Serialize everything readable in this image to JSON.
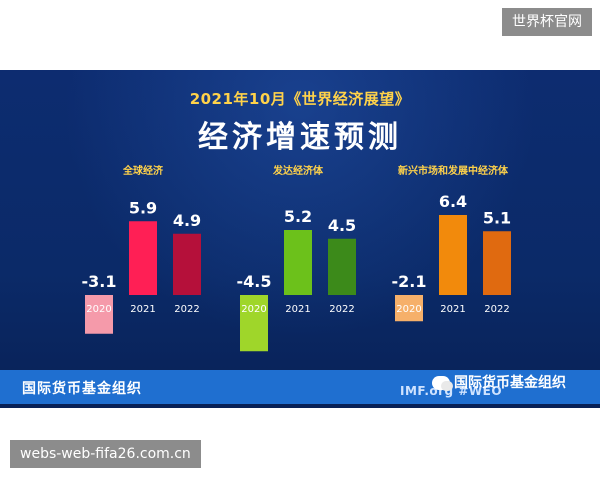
{
  "top_tag": "世界杯官网",
  "bottom_tag": "webs-web-fifa26.com.cn",
  "header": {
    "subtitle": "2021年10月《世界经济展望》",
    "title": "经济增速预测"
  },
  "footer": {
    "org": "国际货币基金组织",
    "site": "IMF.org #WEO",
    "watermark": "国际货币基金组织"
  },
  "chart_data": [
    {
      "type": "bar",
      "title": "全球经济",
      "categories": [
        "2020",
        "2021",
        "2022"
      ],
      "values": [
        -3.1,
        5.9,
        4.9
      ],
      "value_labels": [
        "-3.1",
        "5.9",
        "4.9"
      ],
      "colors": [
        "#f59aaa",
        "#ff1f55",
        "#b5103a"
      ]
    },
    {
      "type": "bar",
      "title": "发达经济体",
      "categories": [
        "2020",
        "2021",
        "2022"
      ],
      "values": [
        -4.5,
        5.2,
        4.5
      ],
      "value_labels": [
        "-4.5",
        "5.2",
        "4.5"
      ],
      "colors": [
        "#9fd62a",
        "#6cc11b",
        "#3c8a1a"
      ]
    },
    {
      "type": "bar",
      "title": "新兴市场和发展中经济体",
      "categories": [
        "2020",
        "2021",
        "2022"
      ],
      "values": [
        -2.1,
        6.4,
        5.1
      ],
      "value_labels": [
        "-2.1",
        "6.4",
        "5.1"
      ],
      "colors": [
        "#f6b06a",
        "#f28a0c",
        "#e06a10"
      ]
    }
  ]
}
